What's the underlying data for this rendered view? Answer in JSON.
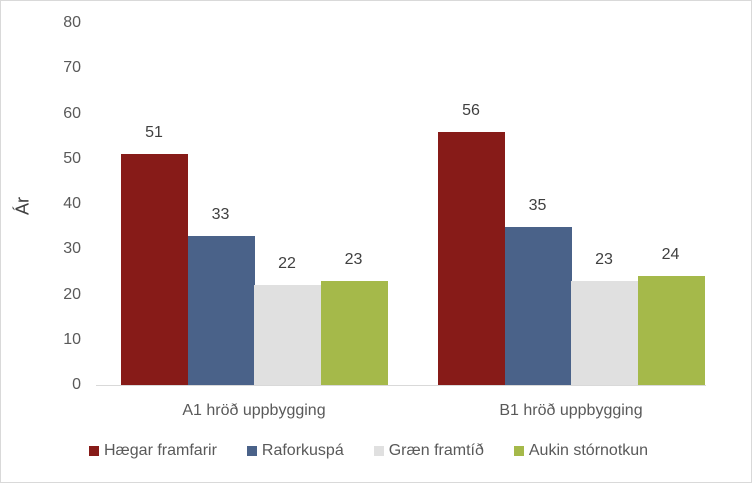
{
  "chart_data": {
    "type": "bar",
    "title": "",
    "xlabel": "",
    "ylabel": "Ár",
    "ylim": [
      0,
      80
    ],
    "yticks": [
      0,
      10,
      20,
      30,
      40,
      50,
      60,
      70,
      80
    ],
    "grid": false,
    "legend_position": "bottom",
    "categories": [
      "A1 hröð uppbygging",
      "B1 hröð uppbygging"
    ],
    "series": [
      {
        "name": "Hægar framfarir",
        "color": "#871B18",
        "values": [
          51,
          56
        ]
      },
      {
        "name": "Raforkuspá",
        "color": "#4A6289",
        "values": [
          33,
          35
        ]
      },
      {
        "name": "Græn framtíð",
        "color": "#E0E0E0",
        "values": [
          22,
          23
        ]
      },
      {
        "name": "Aukin stórnotkun",
        "color": "#A5B94A",
        "values": [
          23,
          24
        ]
      }
    ]
  }
}
